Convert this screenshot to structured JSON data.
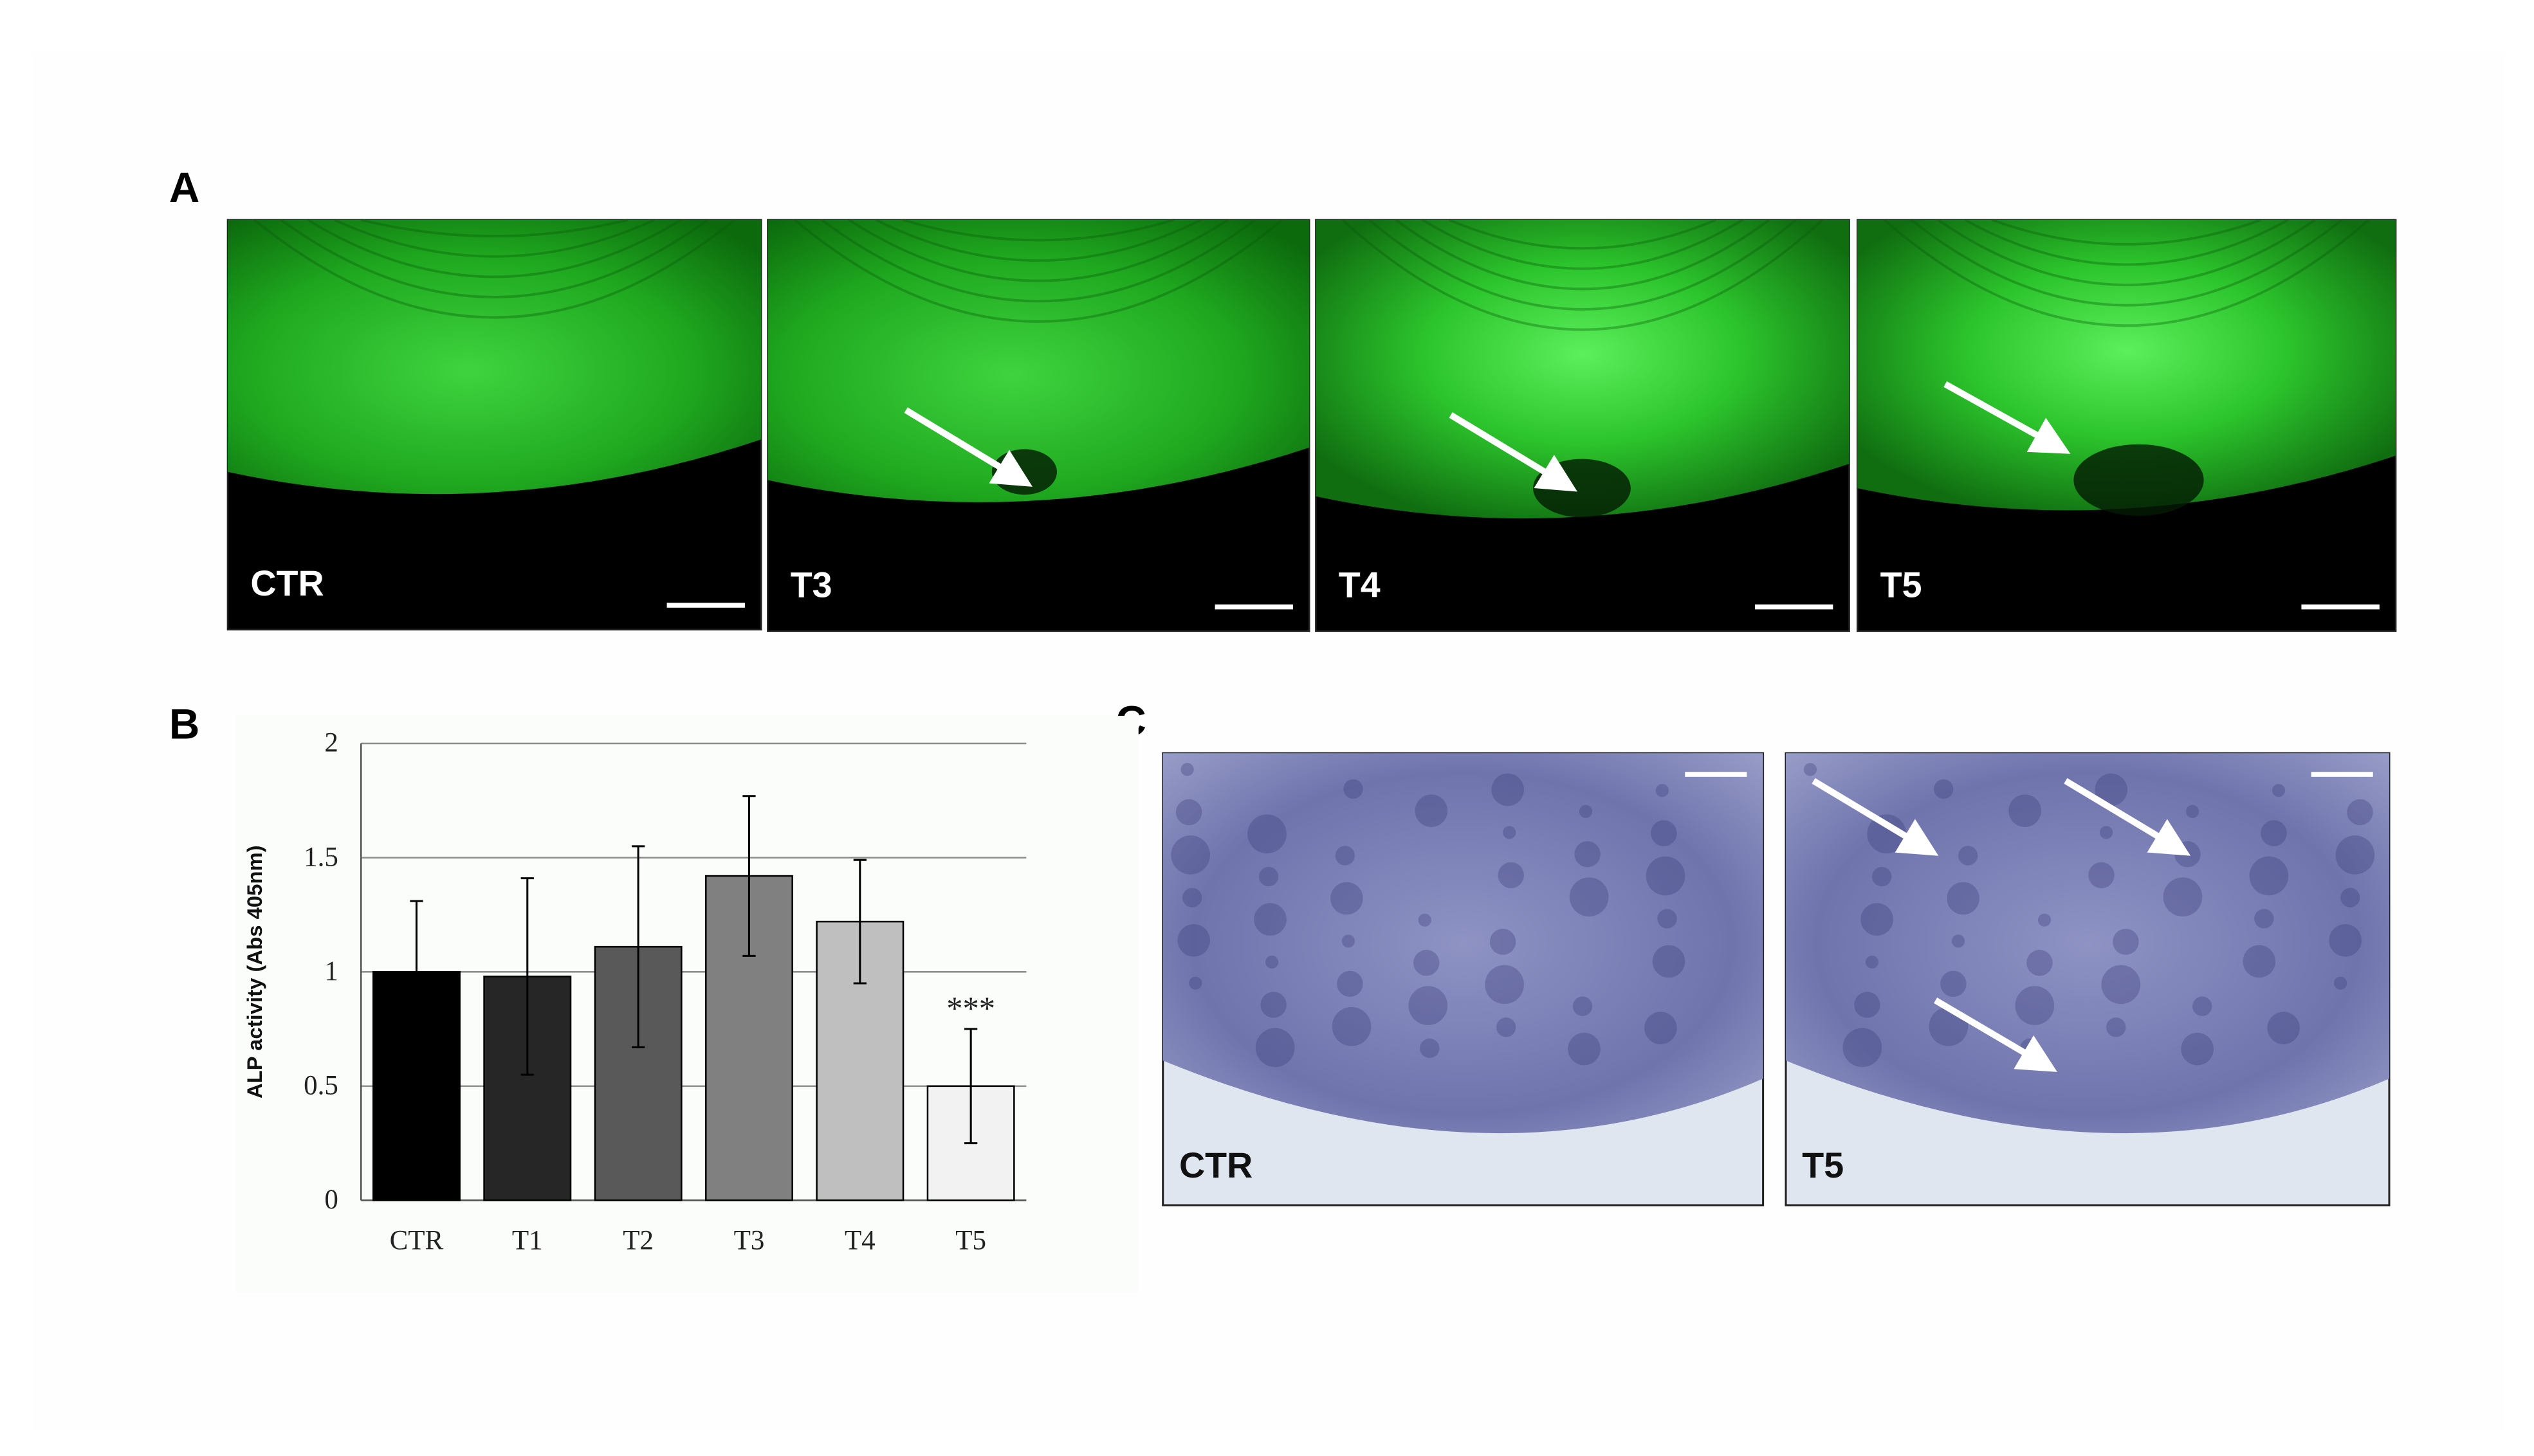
{
  "panels": {
    "a": {
      "label": "A",
      "images": [
        "CTR",
        "T3",
        "T4",
        "T5"
      ]
    },
    "b": {
      "label": "B"
    },
    "c": {
      "label": "C",
      "images": [
        "CTR",
        "T5"
      ]
    }
  },
  "chart_data": {
    "type": "bar",
    "y_label": "ALP activity (Abs 405nm)",
    "categories": [
      "CTR",
      "T1",
      "T2",
      "T3",
      "T4",
      "T5"
    ],
    "values": [
      1.0,
      0.98,
      1.11,
      1.42,
      1.22,
      0.5
    ],
    "errors": [
      0.31,
      0.43,
      0.44,
      0.35,
      0.27,
      0.25
    ],
    "colors": [
      "#000000",
      "#262626",
      "#595959",
      "#808080",
      "#bfbfbf",
      "#f2f2f2"
    ],
    "ylim": [
      0,
      2
    ],
    "yticks": [
      0,
      0.5,
      1,
      1.5,
      2
    ],
    "grid": true,
    "annotations": [
      {
        "x": "T5",
        "text": "***"
      }
    ]
  }
}
